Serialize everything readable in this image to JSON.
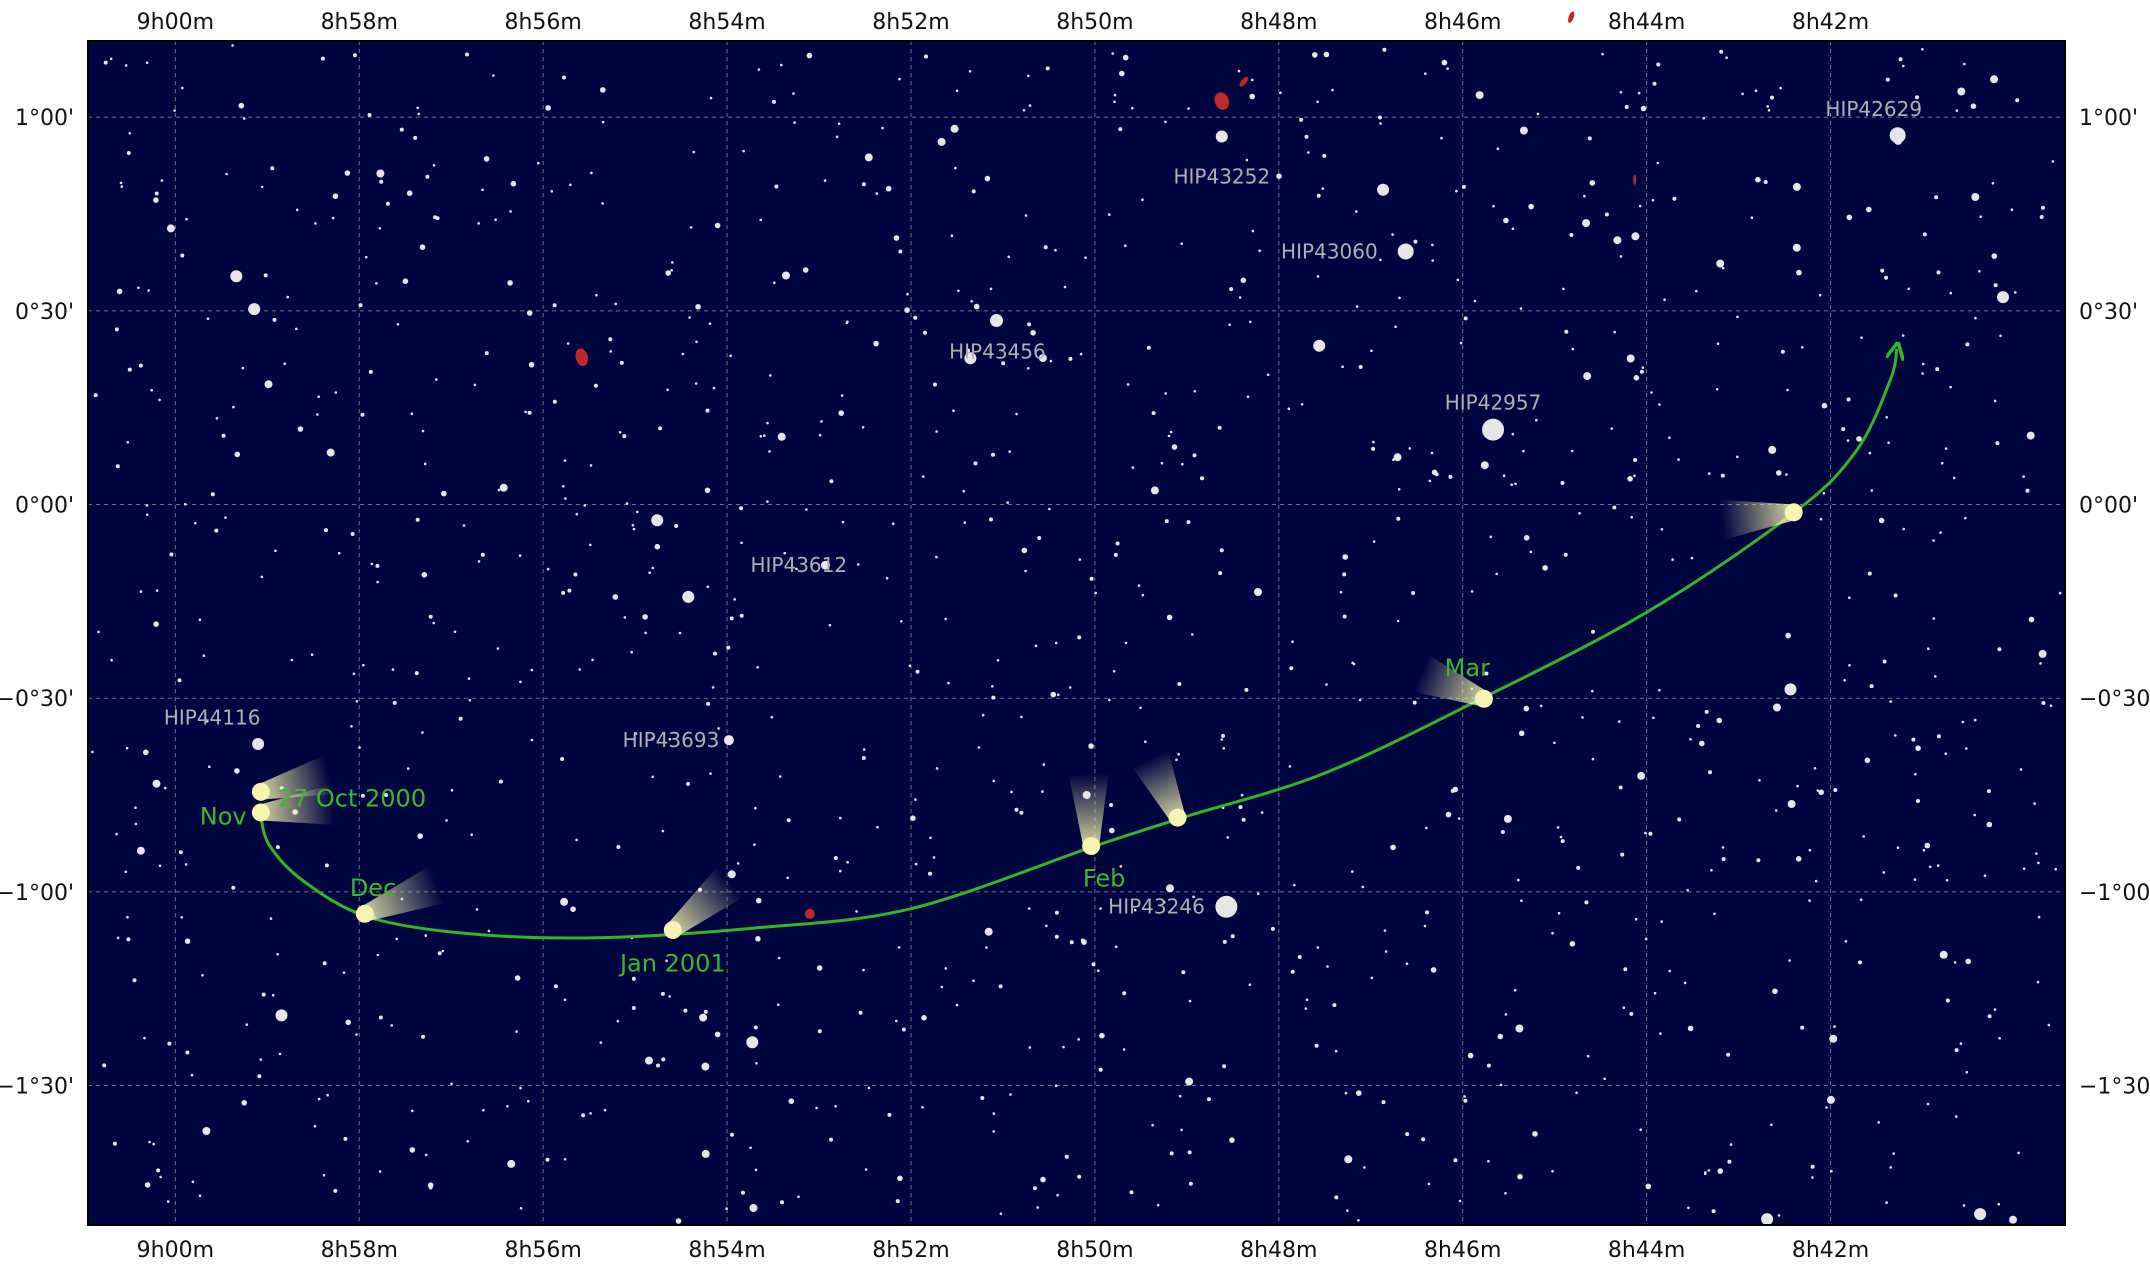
{
  "chart_data": {
    "type": "scatter",
    "x_axis": {
      "quantity": "Right Ascension",
      "range_minutes": [
        540.95,
        519.45
      ],
      "ticks": [
        {
          "value": 540,
          "label": "9h00m"
        },
        {
          "value": 538,
          "label": "8h58m"
        },
        {
          "value": 536,
          "label": "8h56m"
        },
        {
          "value": 534,
          "label": "8h54m"
        },
        {
          "value": 532,
          "label": "8h52m"
        },
        {
          "value": 530,
          "label": "8h50m"
        },
        {
          "value": 528,
          "label": "8h48m"
        },
        {
          "value": 526,
          "label": "8h46m"
        },
        {
          "value": 524,
          "label": "8h44m"
        },
        {
          "value": 522,
          "label": "8h42m"
        }
      ]
    },
    "y_axis": {
      "quantity": "Declination",
      "range_arcmin": [
        -111.6,
        71.8
      ],
      "ticks": [
        {
          "value": 60,
          "label": "1°00'"
        },
        {
          "value": 30,
          "label": "0°30'"
        },
        {
          "value": 0,
          "label": "0°00'"
        },
        {
          "value": -30,
          "label": "−0°30'"
        },
        {
          "value": -60,
          "label": "−1°00'"
        },
        {
          "value": -90,
          "label": "−1°30'"
        }
      ]
    },
    "grid": true,
    "colors": {
      "sky": "#00053f",
      "grid": "#8c8c8c",
      "star": "#e6e6e6",
      "star_label": "#b0b0b0",
      "path": "#2fb62a",
      "path_label": "#3cb82e",
      "comet_head": "#f6f4b0",
      "galaxy": "#c0282a"
    },
    "comet_path": [
      {
        "ra": 539.08,
        "dec": -47.5
      },
      {
        "ra": 538.98,
        "dec": -52.7
      },
      {
        "ra": 538.6,
        "dec": -58.4
      },
      {
        "ra": 537.9,
        "dec": -63.9
      },
      {
        "ra": 536.8,
        "dec": -66.5
      },
      {
        "ra": 535.4,
        "dec": -67.1
      },
      {
        "ra": 533.7,
        "dec": -65.6
      },
      {
        "ra": 532.0,
        "dec": -62.6
      },
      {
        "ra": 530.0,
        "dec": -52.9
      },
      {
        "ra": 529.0,
        "dec": -48.3
      },
      {
        "ra": 527.5,
        "dec": -41.6
      },
      {
        "ra": 525.8,
        "dec": -30.1
      },
      {
        "ra": 524.0,
        "dec": -16.7
      },
      {
        "ra": 522.4,
        "dec": -1.3
      },
      {
        "ra": 521.72,
        "dec": 8.3
      },
      {
        "ra": 521.35,
        "dec": 19.3
      },
      {
        "ra": 521.28,
        "dec": 24.1
      }
    ],
    "comet_positions": [
      {
        "ra": 539.07,
        "dec": -44.5,
        "tail_deg": -14,
        "tail_len": 70
      },
      {
        "ra": 539.07,
        "dec": -47.7,
        "tail_deg": -6,
        "tail_len": 72
      },
      {
        "ra": 537.94,
        "dec": -63.4,
        "tail_deg": -22,
        "tail_len": 78
      },
      {
        "ra": 534.59,
        "dec": -65.9,
        "tail_deg": -40,
        "tail_len": 75
      },
      {
        "ra": 530.04,
        "dec": -52.9,
        "tail_deg": -92,
        "tail_len": 72
      },
      {
        "ra": 529.1,
        "dec": -48.5,
        "tail_deg": -115,
        "tail_len": 65
      },
      {
        "ra": 525.77,
        "dec": -30.1,
        "tail_deg": -158,
        "tail_len": 68
      },
      {
        "ra": 522.4,
        "dec": -1.2,
        "tail_deg": 174,
        "tail_len": 72
      }
    ],
    "path_labels": [
      {
        "text": "27 Oct 2000",
        "ra": 538.08,
        "dec": -45.5
      },
      {
        "text": "Nov",
        "ra": 539.48,
        "dec": -48.3
      },
      {
        "text": "Dec",
        "ra": 537.85,
        "dec": -59.4
      },
      {
        "text": "Jan 2001",
        "ra": 534.59,
        "dec": -71.1
      },
      {
        "text": "Feb",
        "ra": 529.9,
        "dec": -57.9
      },
      {
        "text": "Mar",
        "ra": 525.95,
        "dec": -25.3
      }
    ],
    "labeled_stars": [
      {
        "name": "HIP42629",
        "ra": 521.27,
        "dec": 57.2,
        "mag_size": 14,
        "label_ra": 521.53,
        "label_dec": 61.3
      },
      {
        "name": "HIP43252",
        "ra": 528.62,
        "dec": 57.0,
        "mag_size": 10,
        "label_ra": 528.62,
        "label_dec": 50.8
      },
      {
        "name": "HIP43060",
        "ra": 526.62,
        "dec": 39.2,
        "mag_size": 14,
        "label_ra": 527.45,
        "label_dec": 39.2
      },
      {
        "name": "HIP43456",
        "ra": 531.07,
        "dec": 28.5,
        "mag_size": 11,
        "label_ra": 531.06,
        "label_dec": 23.7
      },
      {
        "name": "HIP42957",
        "ra": 525.67,
        "dec": 11.6,
        "mag_size": 20,
        "label_ra": 525.67,
        "label_dec": 15.8
      },
      {
        "name": "HIP43612",
        "ra": 532.93,
        "dec": -9.4,
        "mag_size": 7,
        "label_ra": 533.22,
        "label_dec": -9.4
      },
      {
        "name": "HIP44116",
        "ra": 539.1,
        "dec": -37.1,
        "mag_size": 10,
        "label_ra": 539.6,
        "label_dec": -33.0
      },
      {
        "name": "HIP43693",
        "ra": 533.98,
        "dec": -36.5,
        "mag_size": 8,
        "label_ra": 534.61,
        "label_dec": -36.5
      },
      {
        "name": "HIP43246",
        "ra": 528.57,
        "dec": -62.3,
        "mag_size": 20,
        "label_ra": 529.33,
        "label_dec": -62.3
      }
    ],
    "deep_sky_objects": [
      {
        "ra": 528.62,
        "dec": 62.5,
        "rx": 7,
        "ry": 9,
        "rot": -20
      },
      {
        "ra": 528.38,
        "dec": 65.5,
        "rx": 2.5,
        "ry": 6,
        "rot": 40
      },
      {
        "ra": 524.82,
        "dec": 75.5,
        "rx": 2.5,
        "ry": 6,
        "rot": 20
      },
      {
        "ra": 524.13,
        "dec": 50.3,
        "rx": 1.5,
        "ry": 5,
        "rot": 0
      },
      {
        "ra": 535.58,
        "dec": 22.8,
        "rx": 6,
        "ry": 9,
        "rot": -15
      },
      {
        "ra": 533.1,
        "dec": -63.4,
        "rx": 5,
        "ry": 5,
        "rot": -30
      }
    ]
  }
}
